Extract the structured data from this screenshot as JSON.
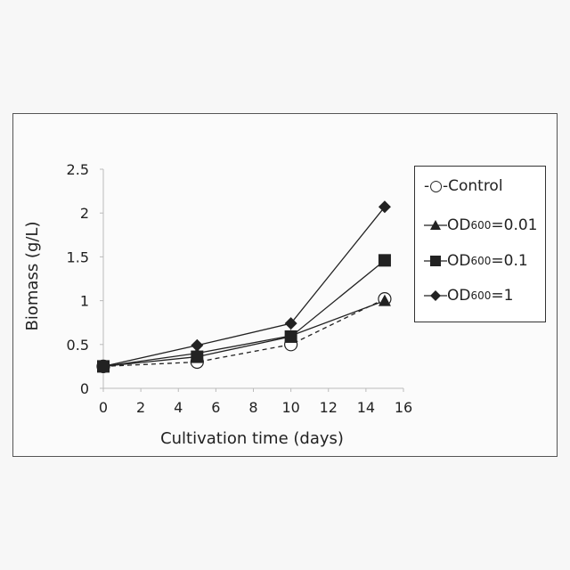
{
  "chart_data": {
    "type": "line",
    "xlabel": "Cultivation time (days)",
    "ylabel": "Biomass (g/L)",
    "xlim": [
      0,
      16
    ],
    "ylim": [
      0,
      2.5
    ],
    "x_ticks": [
      "0",
      "2",
      "4",
      "6",
      "8",
      "10",
      "12",
      "14",
      "16"
    ],
    "y_ticks": [
      "0",
      "0.5",
      "1",
      "1.5",
      "2",
      "2.5"
    ],
    "grid": false,
    "legend_position": "right",
    "series": [
      {
        "name": "Control",
        "marker": "circle-open",
        "line": "dashed",
        "x": [
          0,
          5,
          10,
          15
        ],
        "y": [
          0.25,
          0.3,
          0.5,
          1.02
        ]
      },
      {
        "name": "OD600=0.01",
        "marker": "triangle",
        "line": "solid",
        "x": [
          0,
          5,
          10,
          15
        ],
        "y": [
          0.25,
          0.4,
          0.6,
          1.0
        ]
      },
      {
        "name": "OD600=0.1",
        "marker": "square",
        "line": "solid",
        "x": [
          0,
          5,
          10,
          15
        ],
        "y": [
          0.25,
          0.36,
          0.59,
          1.46
        ]
      },
      {
        "name": "OD600=1",
        "marker": "diamond",
        "line": "solid",
        "x": [
          0,
          5,
          10,
          15
        ],
        "y": [
          0.25,
          0.49,
          0.74,
          2.07
        ]
      }
    ]
  },
  "legend": {
    "control": {
      "prefix": "-○-",
      "label": "Control"
    },
    "od001": {
      "base": "OD",
      "sub": "600",
      "value": "=0.01"
    },
    "od01": {
      "base": "OD",
      "sub": "600",
      "value": "=0.1"
    },
    "od1": {
      "base": "OD",
      "sub": "600",
      "value": "=1"
    }
  }
}
